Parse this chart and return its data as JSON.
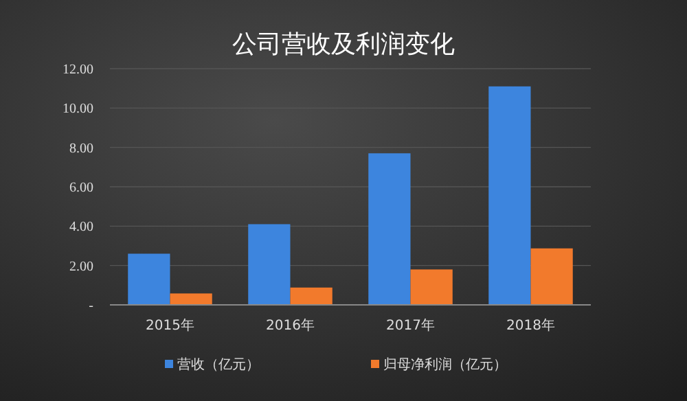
{
  "chart_data": {
    "type": "bar",
    "title": "公司营收及利润变化",
    "categories": [
      "2015年",
      "2016年",
      "2017年",
      "2018年"
    ],
    "series": [
      {
        "name": "营收（亿元）",
        "color": "#3d85de",
        "values": [
          2.6,
          4.1,
          7.7,
          11.1
        ]
      },
      {
        "name": "归母净利润（亿元）",
        "color": "#f27a2c",
        "values": [
          0.58,
          0.88,
          1.8,
          2.87
        ]
      }
    ],
    "ylim": [
      0,
      12
    ],
    "yticks": [
      {
        "value": 0,
        "label": "-"
      },
      {
        "value": 2,
        "label": "2.00"
      },
      {
        "value": 4,
        "label": "4.00"
      },
      {
        "value": 6,
        "label": "6.00"
      },
      {
        "value": 8,
        "label": "8.00"
      },
      {
        "value": 10,
        "label": "10.00"
      },
      {
        "value": 12,
        "label": "12.00"
      }
    ],
    "grid": "y",
    "legend": "bottom"
  }
}
